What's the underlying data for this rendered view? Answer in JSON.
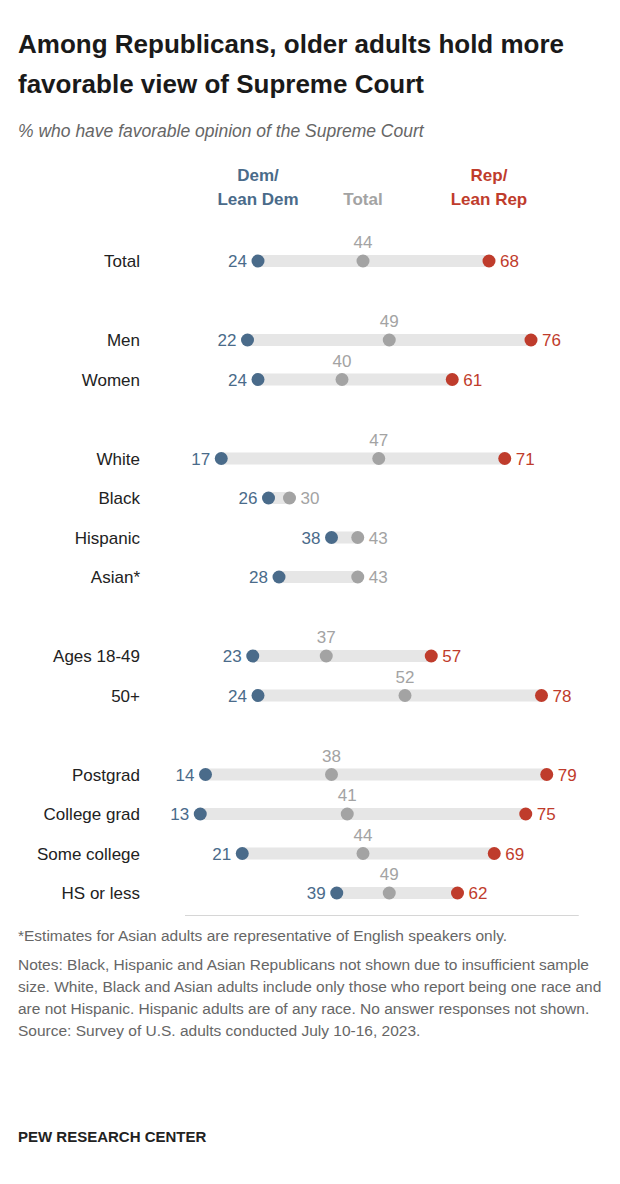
{
  "chart_data": {
    "type": "dot",
    "title": "Among Republicans, older adults hold more favorable view of Supreme Court",
    "subtitle": "% who have favorable opinion of the Supreme Court",
    "categories": [
      "Total",
      "Men",
      "Women",
      "White",
      "Black",
      "Hispanic",
      "Asian*",
      "Ages 18-49",
      "50+",
      "Postgrad",
      "College grad",
      "Some college",
      "HS or less"
    ],
    "series": [
      {
        "name": "Dem/Lean Dem",
        "color": "#4a6b8a",
        "values": [
          24,
          22,
          24,
          17,
          26,
          38,
          28,
          23,
          24,
          14,
          13,
          21,
          39
        ]
      },
      {
        "name": "Total",
        "color": "#a3a3a3",
        "values": [
          44,
          49,
          40,
          47,
          30,
          43,
          43,
          37,
          52,
          38,
          41,
          44,
          49
        ]
      },
      {
        "name": "Rep/Lean Rep",
        "color": "#bf3c2c",
        "values": [
          68,
          76,
          61,
          71,
          null,
          null,
          null,
          57,
          78,
          79,
          75,
          69,
          62
        ]
      }
    ],
    "xlim": [
      10,
      85
    ],
    "tick_labels": false,
    "data_labels": true,
    "footnote": "*Estimates for Asian adults are representative of English speakers only.",
    "notes": "Notes: Black, Hispanic and Asian Republicans not shown due to insufficient sample size. White, Black and Asian adults include only those who report being one race and are not Hispanic. Hispanic adults are of any race. No answer responses not shown.",
    "source": "Source: Survey of U.S. adults conducted July 10-16, 2023.",
    "credit": "PEW RESEARCH CENTER"
  }
}
